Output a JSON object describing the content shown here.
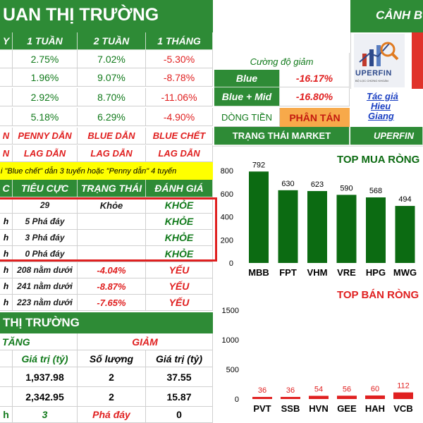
{
  "header": {
    "title": "UAN THỊ TRƯỜNG",
    "right_title": "CẢNH B"
  },
  "perf": {
    "headers": [
      "Y",
      "1 TUẦN",
      "2 TUẦN",
      "1 THÁNG"
    ],
    "rows": [
      [
        "2.75%",
        "7.02%",
        "-5.30%"
      ],
      [
        "1.96%",
        "9.07%",
        "-8.78%"
      ],
      [
        "2.92%",
        "8.70%",
        "-11.06%"
      ],
      [
        "5.18%",
        "6.29%",
        "-4.90%"
      ]
    ]
  },
  "leaders": {
    "row1": [
      "N",
      "PENNY DẪN",
      "BLUE DẪN",
      "BLUE CHẾT"
    ],
    "row2": [
      "N",
      "LAG DẪN",
      "LAG DẪN",
      "LAG DẪN"
    ]
  },
  "note": "i \"Blue chết\" dẫn 3 tuyến hoặc \"Penny dẫn\" 4 tuyến",
  "eval": {
    "headers": [
      "C",
      "TIÊU CỰC",
      "TRẠNG THÁI",
      "ĐÁNH GIÁ"
    ],
    "rows": [
      [
        "",
        "29",
        "Khỏe",
        "KHỎE"
      ],
      [
        "h",
        "5 Phá đáy",
        "",
        "KHỎE"
      ],
      [
        "h",
        "3 Phá đáy",
        "",
        "KHỎE"
      ],
      [
        "h",
        "0 Phá đáy",
        "",
        "KHỎE"
      ],
      [
        "h",
        "208 nằm dưới",
        "-4.04%",
        "YẾU"
      ],
      [
        "h",
        "241 nằm dưới",
        "-8.87%",
        "YẾU"
      ],
      [
        "h",
        "223 nằm dưới",
        "-7.65%",
        "YẾU"
      ]
    ]
  },
  "market": {
    "title": "THỊ TRƯỜNG",
    "group_tang": "TĂNG",
    "group_giam": "GIẢM",
    "cols": [
      "",
      "Giá trị (tỷ)",
      "Số lượng",
      "Giá trị (tỷ)"
    ],
    "rows": [
      [
        "",
        "1,937.98",
        "2",
        "37.55"
      ],
      [
        "",
        "2,342.95",
        "2",
        "15.87"
      ]
    ],
    "foot": [
      "h",
      "3",
      "Phá đáy",
      "0"
    ]
  },
  "strength": {
    "title": "Cường độ giảm",
    "rows": [
      {
        "label": "Blue",
        "value": "-16.17%"
      },
      {
        "label": "Blue + Mid",
        "value": "-16.80%"
      }
    ],
    "dong_tien_label": "DÒNG TIỀN",
    "dong_tien_value": "PHÂN TÁN",
    "status_label": "TRẠNG THÁI MARKET",
    "status_right": "UPERFIN"
  },
  "brand": {
    "logo_text": "UPERFIN",
    "logo_sub": "BỘ LỌC CHỨNG KHOÁN"
  },
  "author": {
    "line1": "Tác giả",
    "line2": "Hieu",
    "line3": "Giang"
  },
  "colors": {
    "green": "#2e8b36",
    "dark_green": "#0c6b12",
    "red": "#e02020",
    "orange": "#f7a94a"
  },
  "chart_data": [
    {
      "type": "bar",
      "title": "TOP MUA RÒNG",
      "categories": [
        "MBB",
        "FPT",
        "VHM",
        "VRE",
        "HPG",
        "MWG"
      ],
      "values": [
        792,
        630,
        623,
        590,
        568,
        494
      ],
      "ylim": [
        0,
        800
      ],
      "yticks": [
        0,
        200,
        400,
        600,
        800
      ],
      "color": "#0c6b12"
    },
    {
      "type": "bar",
      "title": "TOP BÁN RÒNG",
      "categories": [
        "PVT",
        "SSB",
        "HVN",
        "GEE",
        "HAH",
        "VCB"
      ],
      "values": [
        36,
        36,
        54,
        56,
        60,
        112
      ],
      "ylim": [
        0,
        1500
      ],
      "yticks": [
        0,
        500,
        1000,
        1500
      ],
      "color": "#e02020"
    }
  ]
}
